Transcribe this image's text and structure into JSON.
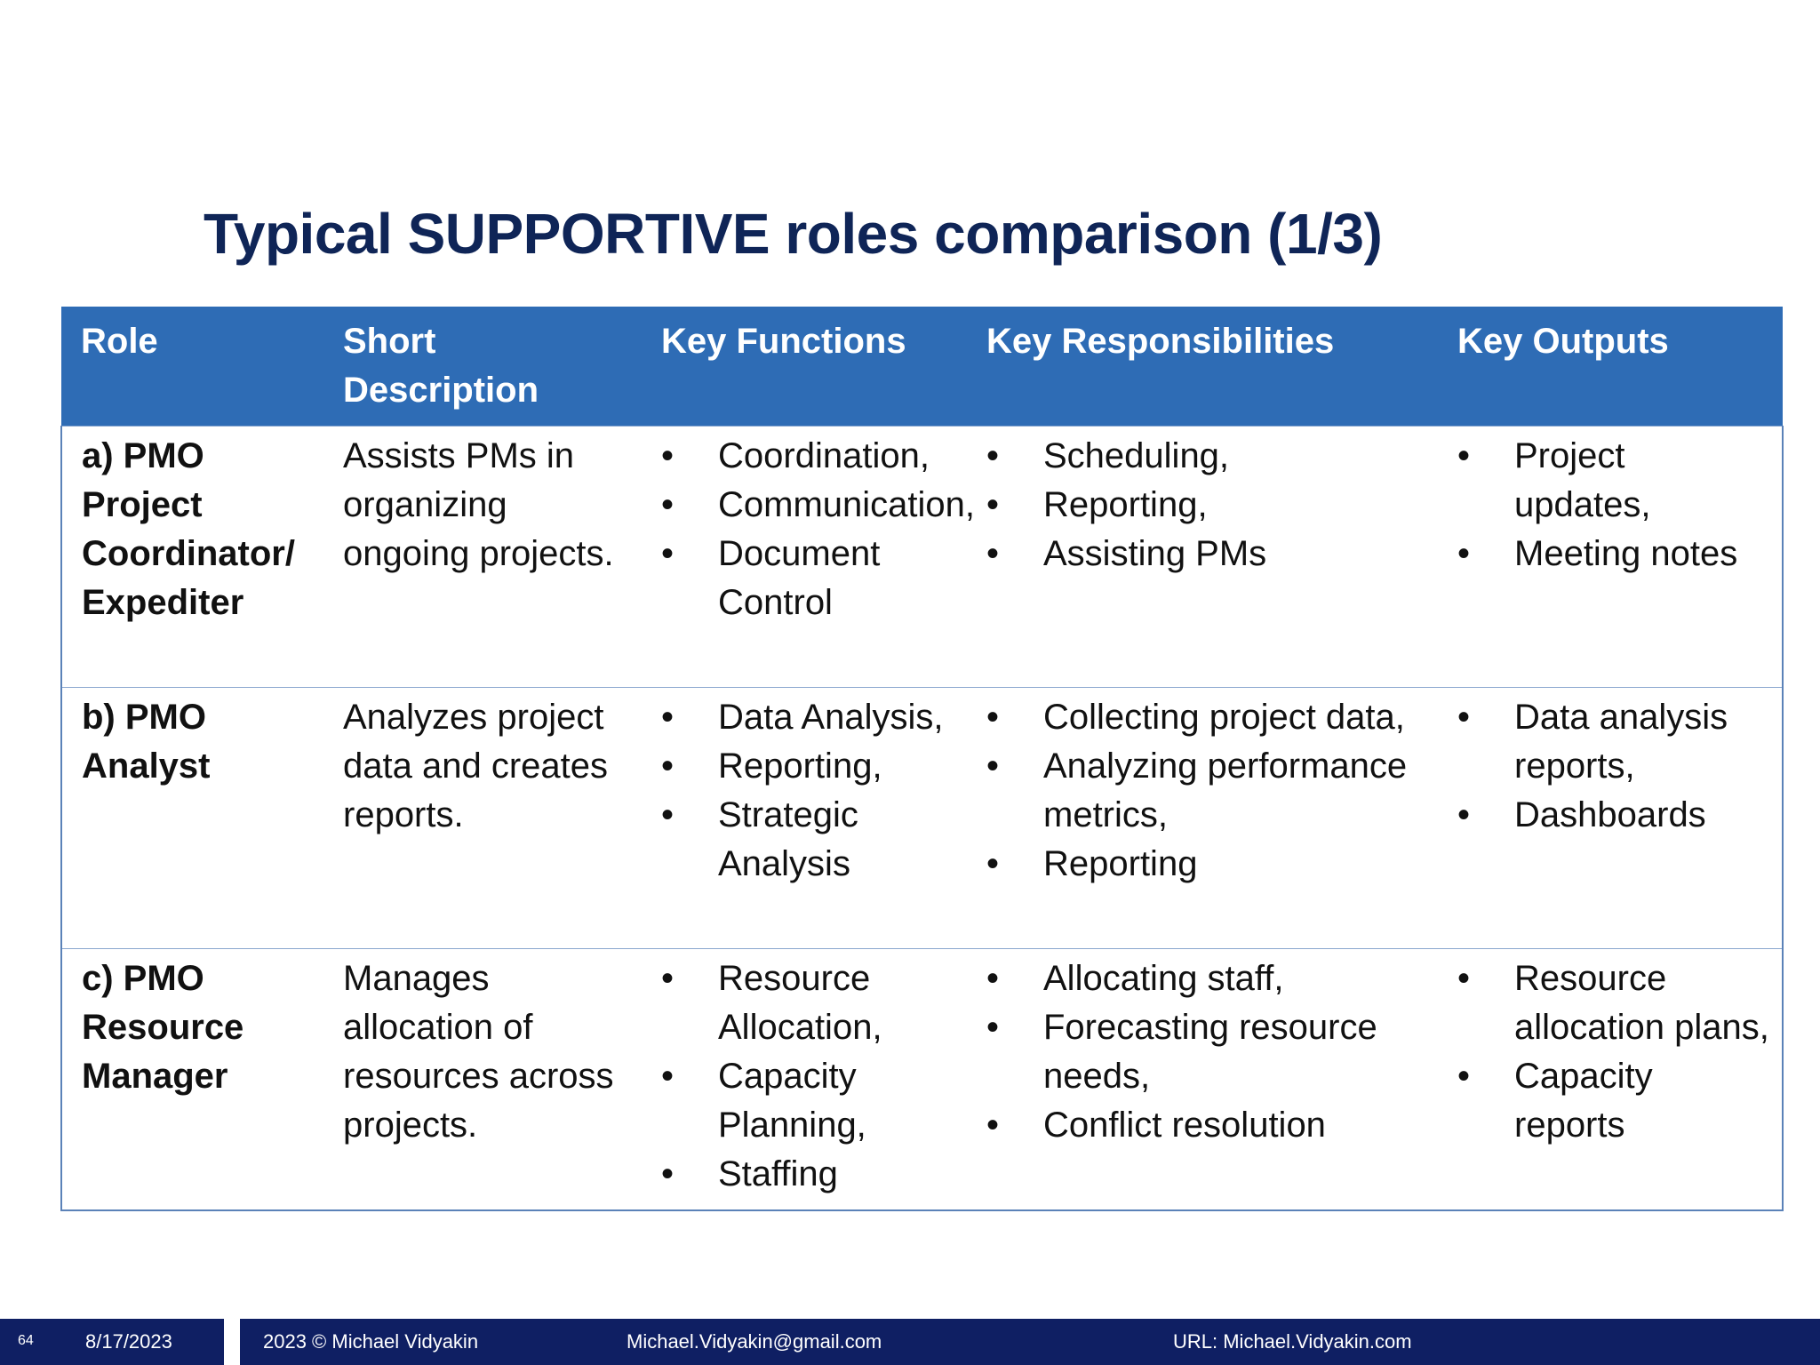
{
  "slide": {
    "title": "Typical SUPPORTIVE roles comparison (1/3)"
  },
  "table": {
    "headers": [
      "Role",
      "Short Description",
      "Key Functions",
      "Key Responsibilities",
      "Key Outputs"
    ],
    "rows": [
      {
        "role": "a) PMO Project Coordinator/ Expediter",
        "description": "Assists PMs in organizing ongoing projects.",
        "functions": [
          "Coordination,",
          "Communication,",
          "Document Control"
        ],
        "responsibilities": [
          "Scheduling,",
          "Reporting,",
          "Assisting PMs"
        ],
        "outputs": [
          "Project updates,",
          "Meeting notes"
        ]
      },
      {
        "role": "b) PMO Analyst",
        "description": "Analyzes project data and creates reports.",
        "functions": [
          "Data Analysis,",
          "Reporting,",
          "Strategic Analysis"
        ],
        "responsibilities": [
          "Collecting project data,",
          "Analyzing performance metrics,",
          "Reporting"
        ],
        "outputs": [
          "Data analysis reports,",
          "Dashboards"
        ]
      },
      {
        "role": "c) PMO Resource Manager",
        "description": "Manages allocation of resources across projects.",
        "functions": [
          "Resource Allocation,",
          "Capacity Planning,",
          "Staffing"
        ],
        "responsibilities": [
          "Allocating staff,",
          "Forecasting resource needs,",
          "Conflict resolution"
        ],
        "outputs": [
          "Resource allocation plans,",
          "Capacity reports"
        ]
      }
    ]
  },
  "footer": {
    "page_number": "64",
    "date": "8/17/2023",
    "copyright": "2023 © Michael Vidyakin",
    "email": "Michael.Vidyakin@gmail.com",
    "url": "URL: Michael.Vidyakin.com"
  },
  "colors": {
    "title": "#0f2557",
    "header_bg": "#2e6cb5",
    "footer_bg": "#0f1f63"
  }
}
